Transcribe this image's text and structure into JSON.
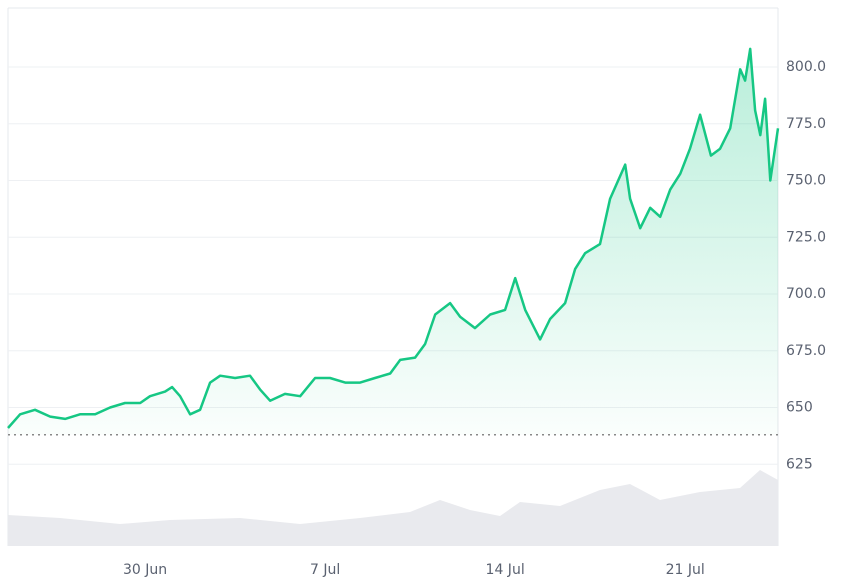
{
  "chart_data": {
    "type": "line",
    "x": [
      -5.33,
      -4.86,
      -4.28,
      -3.69,
      -3.11,
      -2.53,
      -1.94,
      -1.36,
      -0.78,
      -0.19,
      0.19,
      0.78,
      1.05,
      1.36,
      1.75,
      2.14,
      2.53,
      2.92,
      3.5,
      4.08,
      4.47,
      4.86,
      5.44,
      6.03,
      6.61,
      7.19,
      7.78,
      8.36,
      8.94,
      9.53,
      9.92,
      10.5,
      10.89,
      11.28,
      11.86,
      12.25,
      12.83,
      13.42,
      14.0,
      14.39,
      14.78,
      15.36,
      15.75,
      16.33,
      16.72,
      17.11,
      17.69,
      18.08,
      18.67,
      18.86,
      19.25,
      19.64,
      20.03,
      20.42,
      20.81,
      21.19,
      21.58,
      22.0,
      22.36,
      22.75,
      23.14,
      23.33,
      23.53,
      23.72,
      23.92,
      24.11,
      24.31,
      24.61
    ],
    "series": [
      {
        "color": "#16c784",
        "values": [
          641,
          647,
          649,
          646,
          645,
          647,
          647,
          650,
          652,
          652,
          655,
          657,
          659,
          655,
          647,
          649,
          661,
          664,
          663,
          664,
          658,
          653,
          656,
          655,
          663,
          663,
          661,
          661,
          663,
          665,
          671,
          672,
          678,
          691,
          696,
          690,
          685,
          691,
          693,
          707,
          693,
          680,
          689,
          696,
          711,
          718,
          722,
          742,
          757,
          742,
          729,
          738,
          734,
          746,
          753,
          764,
          779,
          761,
          764,
          773,
          799,
          794,
          808,
          781,
          770,
          786,
          750,
          773
        ]
      }
    ],
    "baseline": 638,
    "xlim": [
      -5.33,
      24.61
    ],
    "xticks": [
      {
        "value": 0,
        "label": "30 Jun"
      },
      {
        "value": 7,
        "label": "7 Jul"
      },
      {
        "value": 14,
        "label": "14 Jul"
      },
      {
        "value": 21,
        "label": "21 Jul"
      }
    ],
    "ylim": [
      589,
      826
    ],
    "yticks": [
      625,
      650,
      {
        "value": 675,
        "label": "675.0"
      },
      {
        "value": 700,
        "label": "700.0"
      },
      {
        "value": 725,
        "label": "725.0"
      },
      {
        "value": 750,
        "label": "750.0"
      },
      {
        "value": 775,
        "label": "775.0"
      },
      {
        "value": 800,
        "label": "800.0"
      }
    ],
    "grid": true
  }
}
